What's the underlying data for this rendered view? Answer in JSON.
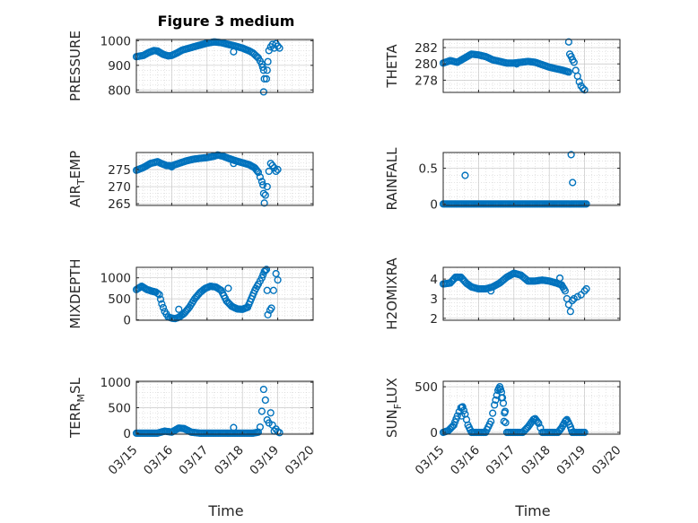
{
  "figure_title": "Figure 3 medium",
  "chart_data": [
    {
      "type": "scatter",
      "ylabel_main": "PRESSURE",
      "ylim": [
        790,
        1005
      ],
      "yticks": [
        800,
        900,
        1000
      ],
      "yminor_step": 20,
      "xlim": [
        0,
        5
      ],
      "x_start_label": "03/15",
      "xticks": [
        "03/15",
        "03/16",
        "03/17",
        "03/18",
        "03/19",
        "03/20"
      ],
      "color": "#0072BD",
      "grid": true,
      "minor_grid": true,
      "trend": [
        [
          0,
          935
        ],
        [
          0.2,
          940
        ],
        [
          0.35,
          952
        ],
        [
          0.5,
          960
        ],
        [
          0.6,
          958
        ],
        [
          0.75,
          945
        ],
        [
          0.9,
          938
        ],
        [
          1.0,
          940
        ],
        [
          1.15,
          950
        ],
        [
          1.3,
          962
        ],
        [
          1.5,
          970
        ],
        [
          1.7,
          978
        ],
        [
          2.0,
          990
        ],
        [
          2.2,
          995
        ],
        [
          2.4,
          992
        ],
        [
          2.6,
          985
        ],
        [
          2.8,
          978
        ],
        [
          3.0,
          970
        ],
        [
          3.2,
          958
        ],
        [
          3.3,
          950
        ],
        [
          3.45,
          930
        ],
        [
          3.55,
          905
        ],
        [
          3.6,
          880
        ]
      ],
      "outliers": [
        [
          3.6,
          792
        ],
        [
          3.62,
          845
        ],
        [
          3.68,
          845
        ],
        [
          3.7,
          880
        ],
        [
          3.72,
          915
        ],
        [
          3.75,
          960
        ],
        [
          3.8,
          975
        ],
        [
          3.85,
          985
        ],
        [
          3.9,
          970
        ],
        [
          3.95,
          988
        ],
        [
          4.0,
          978
        ],
        [
          4.05,
          970
        ],
        [
          2.75,
          955
        ]
      ]
    },
    {
      "type": "scatter",
      "ylabel_main": "THETA",
      "ylim": [
        276.5,
        283
      ],
      "yticks": [
        278,
        280,
        282
      ],
      "yminor_step": 0.5,
      "xlim": [
        0,
        5
      ],
      "color": "#0072BD",
      "grid": true,
      "minor_grid": true,
      "trend": [
        [
          0,
          280.1
        ],
        [
          0.2,
          280.4
        ],
        [
          0.4,
          280.2
        ],
        [
          0.6,
          280.7
        ],
        [
          0.8,
          281.2
        ],
        [
          1.0,
          281.1
        ],
        [
          1.2,
          280.9
        ],
        [
          1.4,
          280.5
        ],
        [
          1.6,
          280.3
        ],
        [
          1.8,
          280.1
        ],
        [
          2.0,
          280.1
        ],
        [
          2.2,
          280.2
        ],
        [
          2.4,
          280.3
        ],
        [
          2.6,
          280.2
        ],
        [
          2.8,
          279.9
        ],
        [
          3.0,
          279.6
        ],
        [
          3.2,
          279.4
        ],
        [
          3.4,
          279.2
        ],
        [
          3.55,
          279.0
        ]
      ],
      "outliers": [
        [
          3.55,
          282.7
        ],
        [
          3.58,
          281.2
        ],
        [
          3.62,
          280.9
        ],
        [
          3.66,
          280.5
        ],
        [
          3.7,
          280.2
        ],
        [
          3.75,
          279.2
        ],
        [
          3.8,
          278.5
        ],
        [
          3.85,
          277.8
        ],
        [
          3.9,
          277.3
        ],
        [
          3.95,
          277.0
        ],
        [
          4.0,
          276.8
        ],
        [
          2.08,
          280.0
        ]
      ]
    },
    {
      "type": "scatter",
      "ylabel_main": "AIR",
      "ylabel_sub": "T",
      "ylabel_rest": "EMP",
      "ylim": [
        264.5,
        280
      ],
      "yticks": [
        265,
        270,
        275
      ],
      "yminor_step": 1,
      "xlim": [
        0,
        5
      ],
      "color": "#0072BD",
      "grid": true,
      "minor_grid": true,
      "trend": [
        [
          0,
          274.8
        ],
        [
          0.2,
          275.6
        ],
        [
          0.4,
          276.8
        ],
        [
          0.6,
          277.3
        ],
        [
          0.7,
          276.8
        ],
        [
          0.85,
          276.2
        ],
        [
          1.0,
          276.1
        ],
        [
          1.2,
          276.8
        ],
        [
          1.4,
          277.5
        ],
        [
          1.6,
          278.0
        ],
        [
          1.8,
          278.3
        ],
        [
          2.0,
          278.5
        ],
        [
          2.2,
          278.9
        ],
        [
          2.3,
          279.3
        ],
        [
          2.45,
          278.9
        ],
        [
          2.6,
          278.3
        ],
        [
          2.8,
          277.6
        ],
        [
          3.0,
          277.0
        ],
        [
          3.2,
          276.4
        ],
        [
          3.35,
          275.5
        ],
        [
          3.45,
          274.2
        ]
      ],
      "outliers": [
        [
          3.5,
          272.8
        ],
        [
          3.55,
          271.5
        ],
        [
          3.58,
          270.5
        ],
        [
          3.6,
          268.0
        ],
        [
          3.62,
          265.2
        ],
        [
          3.65,
          267.5
        ],
        [
          3.7,
          270.0
        ],
        [
          3.75,
          274.5
        ],
        [
          3.8,
          276.8
        ],
        [
          3.85,
          276.2
        ],
        [
          3.9,
          275.5
        ],
        [
          3.95,
          274.5
        ],
        [
          4.0,
          275.0
        ],
        [
          2.75,
          276.8
        ],
        [
          1.0,
          275.8
        ]
      ]
    },
    {
      "type": "scatter",
      "ylabel_main": "RAINFALL",
      "ylim": [
        -0.02,
        0.72
      ],
      "yticks": [
        0,
        0.5
      ],
      "yminor_step": 0.1,
      "xlim": [
        0,
        5
      ],
      "color": "#0072BD",
      "grid": true,
      "minor_grid": true,
      "trend": [
        [
          0,
          0
        ],
        [
          4.05,
          0
        ]
      ],
      "outliers": [
        [
          0.62,
          0.4
        ],
        [
          3.62,
          0.69
        ],
        [
          3.66,
          0.3
        ]
      ]
    },
    {
      "type": "scatter",
      "ylabel_main": "MIXDEPTH",
      "ylim": [
        -10,
        1250
      ],
      "yticks": [
        0,
        500,
        1000
      ],
      "yminor_step": 100,
      "xlim": [
        0,
        5
      ],
      "color": "#0072BD",
      "grid": true,
      "minor_grid": true,
      "trend": [
        [
          0,
          720
        ],
        [
          0.15,
          800
        ],
        [
          0.3,
          720
        ],
        [
          0.45,
          680
        ],
        [
          0.55,
          660
        ],
        [
          0.65,
          600
        ],
        [
          0.72,
          380
        ],
        [
          0.8,
          200
        ],
        [
          0.9,
          70
        ],
        [
          1.0,
          40
        ],
        [
          1.1,
          30
        ],
        [
          1.2,
          60
        ],
        [
          1.35,
          150
        ],
        [
          1.5,
          300
        ],
        [
          1.65,
          500
        ],
        [
          1.8,
          650
        ],
        [
          1.95,
          750
        ],
        [
          2.1,
          800
        ],
        [
          2.25,
          780
        ],
        [
          2.4,
          700
        ],
        [
          2.55,
          450
        ],
        [
          2.7,
          320
        ],
        [
          2.85,
          260
        ],
        [
          3.0,
          250
        ],
        [
          3.15,
          300
        ],
        [
          3.25,
          500
        ],
        [
          3.35,
          700
        ],
        [
          3.45,
          850
        ],
        [
          3.55,
          1000
        ],
        [
          3.62,
          1150
        ],
        [
          3.68,
          1200
        ]
      ],
      "outliers": [
        [
          3.7,
          700
        ],
        [
          3.72,
          120
        ],
        [
          3.78,
          230
        ],
        [
          3.82,
          280
        ],
        [
          3.88,
          700
        ],
        [
          3.95,
          1100
        ],
        [
          4.0,
          950
        ],
        [
          1.2,
          250
        ],
        [
          2.6,
          750
        ]
      ]
    },
    {
      "type": "scatter",
      "ylabel_main": "H2OMIXRA",
      "ylim": [
        1.9,
        4.6
      ],
      "yticks": [
        2,
        3,
        4
      ],
      "yminor_step": 0.2,
      "xlim": [
        0,
        5
      ],
      "color": "#0072BD",
      "grid": true,
      "minor_grid": true,
      "trend": [
        [
          0,
          3.75
        ],
        [
          0.2,
          3.8
        ],
        [
          0.35,
          4.1
        ],
        [
          0.5,
          4.1
        ],
        [
          0.65,
          3.8
        ],
        [
          0.8,
          3.6
        ],
        [
          1.0,
          3.5
        ],
        [
          1.2,
          3.5
        ],
        [
          1.4,
          3.6
        ],
        [
          1.6,
          3.8
        ],
        [
          1.8,
          4.1
        ],
        [
          2.0,
          4.3
        ],
        [
          2.2,
          4.2
        ],
        [
          2.4,
          3.9
        ],
        [
          2.6,
          3.9
        ],
        [
          2.8,
          3.95
        ],
        [
          3.0,
          3.9
        ],
        [
          3.2,
          3.8
        ],
        [
          3.35,
          3.7
        ],
        [
          3.45,
          3.4
        ]
      ],
      "outliers": [
        [
          3.5,
          3.0
        ],
        [
          3.55,
          2.7
        ],
        [
          3.6,
          2.35
        ],
        [
          3.65,
          2.9
        ],
        [
          3.7,
          3.0
        ],
        [
          3.8,
          3.1
        ],
        [
          3.9,
          3.2
        ],
        [
          4.0,
          3.4
        ],
        [
          4.05,
          3.5
        ],
        [
          3.3,
          4.05
        ],
        [
          1.35,
          3.4
        ]
      ]
    },
    {
      "type": "scatter",
      "ylabel_main": "TERR",
      "ylabel_sub": "M",
      "ylabel_rest": "SL",
      "ylim": [
        -20,
        1020
      ],
      "yticks": [
        0,
        500,
        1000
      ],
      "yminor_step": 100,
      "xlim": [
        0,
        5
      ],
      "color": "#0072BD",
      "grid": true,
      "minor_grid": true,
      "trend": [
        [
          0,
          0
        ],
        [
          0.6,
          0
        ],
        [
          0.8,
          40
        ],
        [
          1.0,
          20
        ],
        [
          1.2,
          100
        ],
        [
          1.35,
          90
        ],
        [
          1.55,
          20
        ],
        [
          1.8,
          0
        ],
        [
          3.3,
          0
        ],
        [
          3.45,
          20
        ]
      ],
      "outliers": [
        [
          2.75,
          110
        ],
        [
          3.5,
          120
        ],
        [
          3.55,
          430
        ],
        [
          3.6,
          860
        ],
        [
          3.65,
          650
        ],
        [
          3.7,
          260
        ],
        [
          3.75,
          200
        ],
        [
          3.8,
          400
        ],
        [
          3.85,
          160
        ],
        [
          3.9,
          40
        ],
        [
          3.95,
          80
        ],
        [
          4.0,
          30
        ],
        [
          4.05,
          10
        ]
      ]
    },
    {
      "type": "scatter",
      "ylabel_main": "SUN",
      "ylabel_sub": "F",
      "ylabel_rest": "LUX",
      "ylim": [
        -20,
        560
      ],
      "yticks": [
        0,
        500
      ],
      "yminor_step": 100,
      "xlim": [
        0,
        5
      ],
      "color": "#0072BD",
      "grid": true,
      "minor_grid": true,
      "trend": [
        [
          0,
          0
        ],
        [
          0.15,
          20
        ],
        [
          0.3,
          80
        ],
        [
          0.4,
          180
        ],
        [
          0.5,
          270
        ],
        [
          0.55,
          280
        ],
        [
          0.62,
          200
        ],
        [
          0.7,
          80
        ],
        [
          0.8,
          0
        ],
        [
          1.2,
          0
        ],
        [
          1.35,
          120
        ],
        [
          1.45,
          300
        ],
        [
          1.55,
          460
        ],
        [
          1.6,
          500
        ],
        [
          1.65,
          440
        ],
        [
          1.7,
          320
        ],
        [
          1.8,
          0
        ],
        [
          2.25,
          0
        ],
        [
          2.4,
          60
        ],
        [
          2.55,
          140
        ],
        [
          2.6,
          150
        ],
        [
          2.7,
          100
        ],
        [
          2.8,
          0
        ],
        [
          3.25,
          0
        ],
        [
          3.35,
          50
        ],
        [
          3.45,
          120
        ],
        [
          3.5,
          140
        ],
        [
          3.6,
          60
        ],
        [
          3.65,
          0
        ],
        [
          4.0,
          0
        ]
      ],
      "outliers": [
        [
          1.75,
          230
        ],
        [
          1.65,
          380
        ],
        [
          1.72,
          120
        ],
        [
          0.52,
          180
        ]
      ]
    }
  ],
  "xlabel": "Time"
}
